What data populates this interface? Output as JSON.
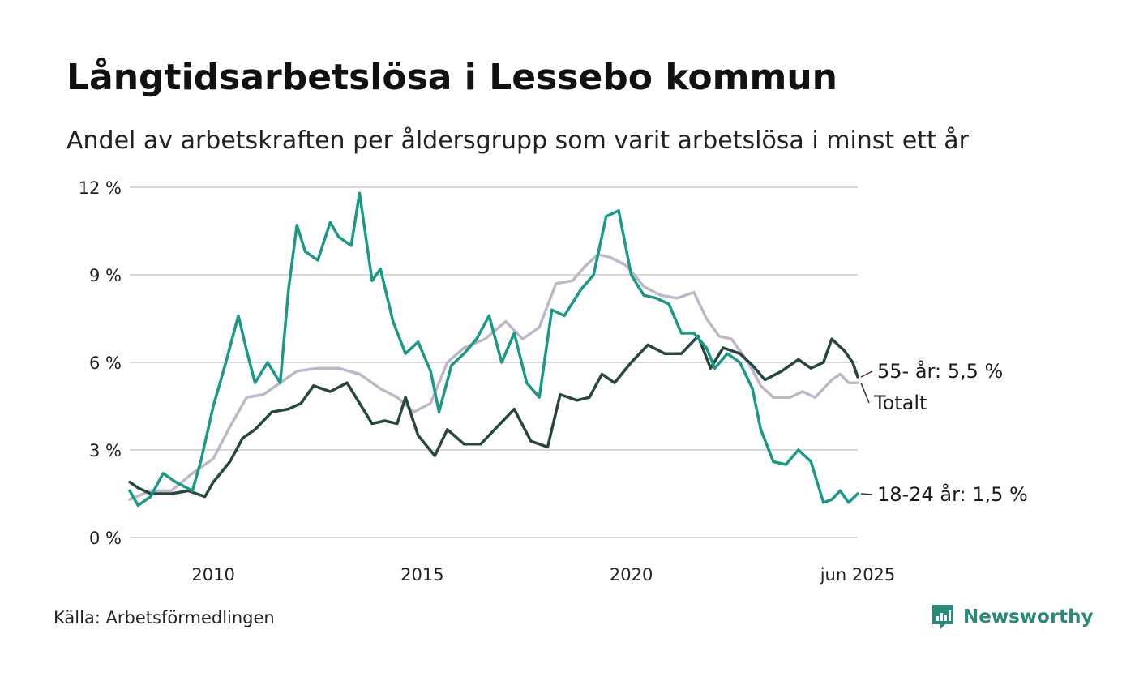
{
  "title": "Långtidsarbetslösa i Lessebo kommun",
  "subtitle": "Andel av arbetskraften per åldersgrupp som varit arbetslösa i minst ett år",
  "source": "Källa: Arbetsförmedlingen",
  "brand": "Newsworthy",
  "colors": {
    "young": "#1a9a86",
    "old": "#27463f",
    "total": "#bdb8c8",
    "grid": "#d9d9d9",
    "brand": "#2a8a7a"
  },
  "chart_data": {
    "type": "line",
    "x_unit": "decimal year",
    "xlim": [
      2008.0,
      2025.42
    ],
    "ylim": [
      0,
      12
    ],
    "y_ticks": [
      {
        "value": 0,
        "label": "0 %"
      },
      {
        "value": 3,
        "label": "3 %"
      },
      {
        "value": 6,
        "label": "6 %"
      },
      {
        "value": 9,
        "label": "9 %"
      },
      {
        "value": 12,
        "label": "12 %"
      }
    ],
    "x_ticks": [
      {
        "value": 2010,
        "label": "2010"
      },
      {
        "value": 2015,
        "label": "2015"
      },
      {
        "value": 2020,
        "label": "2020"
      },
      {
        "value": 2025.42,
        "label": "jun 2025"
      }
    ],
    "grid": true,
    "series": [
      {
        "key": "total",
        "name": "Totalt",
        "label": "Totalt",
        "points": [
          [
            2008.0,
            1.3
          ],
          [
            2008.5,
            1.6
          ],
          [
            2009.0,
            1.6
          ],
          [
            2009.5,
            2.2
          ],
          [
            2010.0,
            2.7
          ],
          [
            2010.4,
            3.8
          ],
          [
            2010.8,
            4.8
          ],
          [
            2011.2,
            4.9
          ],
          [
            2011.6,
            5.3
          ],
          [
            2012.0,
            5.7
          ],
          [
            2012.5,
            5.8
          ],
          [
            2013.0,
            5.8
          ],
          [
            2013.5,
            5.6
          ],
          [
            2014.0,
            5.1
          ],
          [
            2014.4,
            4.8
          ],
          [
            2014.8,
            4.3
          ],
          [
            2015.2,
            4.6
          ],
          [
            2015.6,
            6.0
          ],
          [
            2016.0,
            6.5
          ],
          [
            2016.5,
            6.8
          ],
          [
            2017.0,
            7.4
          ],
          [
            2017.4,
            6.8
          ],
          [
            2017.8,
            7.2
          ],
          [
            2018.2,
            8.7
          ],
          [
            2018.6,
            8.8
          ],
          [
            2018.9,
            9.3
          ],
          [
            2019.2,
            9.7
          ],
          [
            2019.5,
            9.6
          ],
          [
            2019.9,
            9.3
          ],
          [
            2020.3,
            8.6
          ],
          [
            2020.7,
            8.3
          ],
          [
            2021.1,
            8.2
          ],
          [
            2021.5,
            8.4
          ],
          [
            2021.8,
            7.5
          ],
          [
            2022.1,
            6.9
          ],
          [
            2022.4,
            6.8
          ],
          [
            2022.8,
            6.0
          ],
          [
            2023.1,
            5.2
          ],
          [
            2023.4,
            4.8
          ],
          [
            2023.8,
            4.8
          ],
          [
            2024.1,
            5.0
          ],
          [
            2024.4,
            4.8
          ],
          [
            2024.8,
            5.4
          ],
          [
            2025.0,
            5.6
          ],
          [
            2025.2,
            5.3
          ],
          [
            2025.42,
            5.3
          ]
        ]
      },
      {
        "key": "old",
        "name": "55- år",
        "label": "55- år: 5,5 %",
        "points": [
          [
            2008.0,
            1.9
          ],
          [
            2008.2,
            1.7
          ],
          [
            2008.5,
            1.5
          ],
          [
            2009.0,
            1.5
          ],
          [
            2009.4,
            1.6
          ],
          [
            2009.8,
            1.4
          ],
          [
            2010.0,
            1.9
          ],
          [
            2010.4,
            2.6
          ],
          [
            2010.7,
            3.4
          ],
          [
            2011.0,
            3.7
          ],
          [
            2011.4,
            4.3
          ],
          [
            2011.8,
            4.4
          ],
          [
            2012.1,
            4.6
          ],
          [
            2012.4,
            5.2
          ],
          [
            2012.8,
            5.0
          ],
          [
            2013.2,
            5.3
          ],
          [
            2013.5,
            4.6
          ],
          [
            2013.8,
            3.9
          ],
          [
            2014.1,
            4.0
          ],
          [
            2014.4,
            3.9
          ],
          [
            2014.6,
            4.8
          ],
          [
            2014.9,
            3.5
          ],
          [
            2015.3,
            2.8
          ],
          [
            2015.6,
            3.7
          ],
          [
            2016.0,
            3.2
          ],
          [
            2016.4,
            3.2
          ],
          [
            2016.8,
            3.8
          ],
          [
            2017.2,
            4.4
          ],
          [
            2017.6,
            3.3
          ],
          [
            2018.0,
            3.1
          ],
          [
            2018.3,
            4.9
          ],
          [
            2018.7,
            4.7
          ],
          [
            2019.0,
            4.8
          ],
          [
            2019.3,
            5.6
          ],
          [
            2019.6,
            5.3
          ],
          [
            2020.0,
            6.0
          ],
          [
            2020.4,
            6.6
          ],
          [
            2020.8,
            6.3
          ],
          [
            2021.2,
            6.3
          ],
          [
            2021.6,
            6.9
          ],
          [
            2021.9,
            5.8
          ],
          [
            2022.2,
            6.5
          ],
          [
            2022.6,
            6.3
          ],
          [
            2022.9,
            5.9
          ],
          [
            2023.2,
            5.4
          ],
          [
            2023.6,
            5.7
          ],
          [
            2024.0,
            6.1
          ],
          [
            2024.3,
            5.8
          ],
          [
            2024.6,
            6.0
          ],
          [
            2024.8,
            6.8
          ],
          [
            2025.1,
            6.4
          ],
          [
            2025.3,
            6.0
          ],
          [
            2025.42,
            5.5
          ]
        ]
      },
      {
        "key": "young",
        "name": "18-24 år",
        "label": "18-24 år: 1,5 %",
        "points": [
          [
            2008.0,
            1.6
          ],
          [
            2008.2,
            1.1
          ],
          [
            2008.5,
            1.4
          ],
          [
            2008.8,
            2.2
          ],
          [
            2009.1,
            1.9
          ],
          [
            2009.5,
            1.6
          ],
          [
            2009.7,
            2.6
          ],
          [
            2010.0,
            4.5
          ],
          [
            2010.3,
            6.0
          ],
          [
            2010.6,
            7.6
          ],
          [
            2010.8,
            6.4
          ],
          [
            2011.0,
            5.3
          ],
          [
            2011.3,
            6.0
          ],
          [
            2011.6,
            5.3
          ],
          [
            2011.8,
            8.5
          ],
          [
            2012.0,
            10.7
          ],
          [
            2012.2,
            9.8
          ],
          [
            2012.5,
            9.5
          ],
          [
            2012.8,
            10.8
          ],
          [
            2013.0,
            10.3
          ],
          [
            2013.3,
            10.0
          ],
          [
            2013.5,
            11.8
          ],
          [
            2013.8,
            8.8
          ],
          [
            2014.0,
            9.2
          ],
          [
            2014.3,
            7.4
          ],
          [
            2014.6,
            6.3
          ],
          [
            2014.9,
            6.7
          ],
          [
            2015.2,
            5.7
          ],
          [
            2015.4,
            4.3
          ],
          [
            2015.7,
            5.9
          ],
          [
            2016.0,
            6.3
          ],
          [
            2016.3,
            6.8
          ],
          [
            2016.6,
            7.6
          ],
          [
            2016.9,
            6.0
          ],
          [
            2017.2,
            7.0
          ],
          [
            2017.5,
            5.3
          ],
          [
            2017.8,
            4.8
          ],
          [
            2018.1,
            7.8
          ],
          [
            2018.4,
            7.6
          ],
          [
            2018.8,
            8.5
          ],
          [
            2019.1,
            9.0
          ],
          [
            2019.4,
            11.0
          ],
          [
            2019.7,
            11.2
          ],
          [
            2020.0,
            9.0
          ],
          [
            2020.3,
            8.3
          ],
          [
            2020.6,
            8.2
          ],
          [
            2020.9,
            8.0
          ],
          [
            2021.2,
            7.0
          ],
          [
            2021.5,
            7.0
          ],
          [
            2021.8,
            6.5
          ],
          [
            2022.0,
            5.8
          ],
          [
            2022.3,
            6.3
          ],
          [
            2022.6,
            6.0
          ],
          [
            2022.9,
            5.1
          ],
          [
            2023.1,
            3.7
          ],
          [
            2023.4,
            2.6
          ],
          [
            2023.7,
            2.5
          ],
          [
            2024.0,
            3.0
          ],
          [
            2024.3,
            2.6
          ],
          [
            2024.6,
            1.2
          ],
          [
            2024.8,
            1.3
          ],
          [
            2025.0,
            1.6
          ],
          [
            2025.2,
            1.2
          ],
          [
            2025.42,
            1.5
          ]
        ]
      }
    ]
  }
}
